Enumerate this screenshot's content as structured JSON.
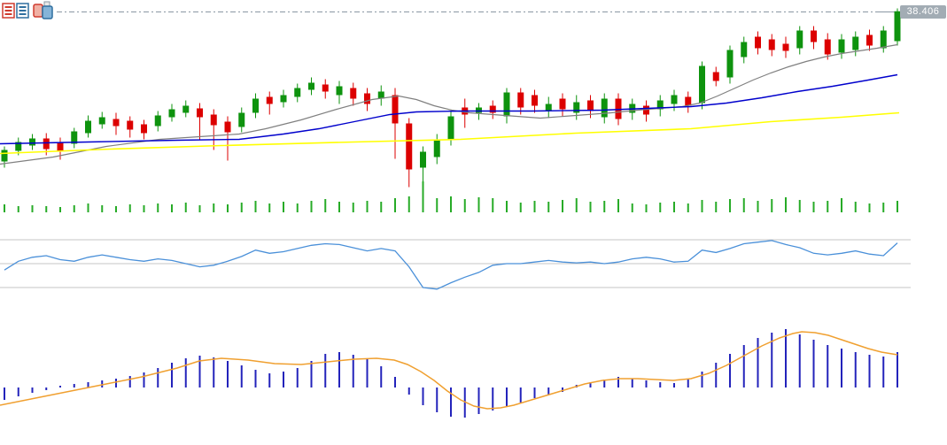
{
  "price_label": {
    "value": "38.406",
    "bg_color": "#a2acb4",
    "text_color": "#ffffff"
  },
  "toolbar": {
    "buttons": [
      {
        "name": "market-quotes-button",
        "icon": "quote-board-icon"
      },
      {
        "name": "chart-type-button",
        "icon": "candlestick-chart-icon"
      }
    ]
  },
  "colors": {
    "up": "#0e930e",
    "down": "#dc0000",
    "ma_fast": "#808080",
    "ma_mid": "#0000cc",
    "ma_slow": "#ffff00",
    "volume": "#27ab27",
    "oscillator": "#4a90d9",
    "grid": "#c4c4c4",
    "macd_bar": "#2323bb",
    "macd_signal": "#f0a030",
    "last_price_line": "#8a97a3"
  },
  "chart_data": [
    {
      "type": "candlestick",
      "name": "price-panel-with-moving-averages",
      "x_start": 5,
      "x_step": 15.75,
      "ylim": [
        34.3,
        38.5
      ],
      "last_price": 38.406,
      "candles": [
        [
          35.01,
          35.35,
          34.87,
          35.27
        ],
        [
          35.25,
          35.55,
          35.15,
          35.45
        ],
        [
          35.37,
          35.63,
          35.27,
          35.53
        ],
        [
          35.53,
          35.65,
          35.15,
          35.29
        ],
        [
          35.45,
          35.55,
          35.05,
          35.25
        ],
        [
          35.41,
          35.77,
          35.31,
          35.69
        ],
        [
          35.65,
          36.05,
          35.55,
          35.93
        ],
        [
          35.85,
          36.13,
          35.75,
          36.01
        ],
        [
          35.97,
          36.11,
          35.61,
          35.81
        ],
        [
          35.93,
          36.03,
          35.55,
          35.73
        ],
        [
          35.85,
          35.95,
          35.51,
          35.65
        ],
        [
          35.81,
          36.15,
          35.69,
          36.05
        ],
        [
          36.01,
          36.31,
          35.91,
          36.19
        ],
        [
          36.11,
          36.39,
          36.01,
          36.27
        ],
        [
          36.21,
          36.33,
          35.51,
          36.01
        ],
        [
          36.07,
          36.19,
          35.27,
          35.83
        ],
        [
          35.91,
          36.03,
          35.03,
          35.67
        ],
        [
          35.79,
          36.23,
          35.67,
          36.11
        ],
        [
          36.11,
          36.55,
          35.99,
          36.43
        ],
        [
          36.47,
          36.59,
          36.07,
          36.31
        ],
        [
          36.35,
          36.63,
          36.23,
          36.51
        ],
        [
          36.47,
          36.77,
          36.35,
          36.67
        ],
        [
          36.63,
          36.91,
          36.51,
          36.79
        ],
        [
          36.75,
          36.87,
          36.43,
          36.59
        ],
        [
          36.51,
          36.83,
          36.31,
          36.71
        ],
        [
          36.67,
          36.79,
          36.27,
          36.43
        ],
        [
          36.55,
          36.67,
          36.15,
          36.31
        ],
        [
          36.43,
          36.73,
          36.27,
          36.59
        ],
        [
          36.51,
          36.67,
          35.07,
          35.87
        ],
        [
          35.87,
          35.99,
          34.43,
          34.83
        ],
        [
          34.87,
          35.35,
          34.37,
          35.23
        ],
        [
          35.11,
          35.63,
          34.95,
          35.51
        ],
        [
          35.51,
          36.15,
          35.37,
          36.03
        ],
        [
          36.23,
          36.43,
          35.77,
          36.07
        ],
        [
          36.11,
          36.33,
          35.95,
          36.23
        ],
        [
          36.27,
          36.39,
          35.97,
          36.11
        ],
        [
          36.03,
          36.67,
          35.87,
          36.57
        ],
        [
          36.57,
          36.67,
          36.07,
          36.23
        ],
        [
          36.51,
          36.63,
          36.11,
          36.27
        ],
        [
          36.15,
          36.47,
          35.99,
          36.31
        ],
        [
          36.43,
          36.55,
          36.03,
          36.19
        ],
        [
          36.11,
          36.51,
          35.95,
          36.35
        ],
        [
          36.39,
          36.51,
          35.99,
          36.15
        ],
        [
          36.01,
          36.55,
          35.87,
          36.43
        ],
        [
          36.43,
          36.55,
          35.83,
          35.97
        ],
        [
          36.11,
          36.43,
          35.95,
          36.31
        ],
        [
          36.27,
          36.39,
          35.91,
          36.07
        ],
        [
          36.19,
          36.51,
          36.03,
          36.39
        ],
        [
          36.31,
          36.63,
          36.15,
          36.51
        ],
        [
          36.47,
          36.59,
          36.11,
          36.27
        ],
        [
          36.33,
          37.27,
          36.19,
          37.17
        ],
        [
          37.03,
          37.15,
          36.71,
          36.83
        ],
        [
          36.91,
          37.63,
          36.77,
          37.53
        ],
        [
          37.37,
          37.83,
          37.23,
          37.71
        ],
        [
          37.83,
          37.95,
          37.43,
          37.57
        ],
        [
          37.77,
          37.89,
          37.39,
          37.53
        ],
        [
          37.67,
          37.83,
          37.35,
          37.51
        ],
        [
          37.57,
          38.07,
          37.43,
          37.97
        ],
        [
          37.97,
          38.07,
          37.55,
          37.71
        ],
        [
          37.77,
          37.91,
          37.31,
          37.43
        ],
        [
          37.47,
          37.89,
          37.33,
          37.77
        ],
        [
          37.53,
          37.95,
          37.39,
          37.83
        ],
        [
          37.87,
          37.99,
          37.51,
          37.63
        ],
        [
          37.57,
          38.07,
          37.47,
          37.97
        ],
        [
          37.73,
          38.47,
          37.63,
          38.406
        ]
      ],
      "overlays": [
        {
          "name": "ma-fast-gray",
          "color_key": "ma_fast",
          "width": 1.2,
          "points": [
            [
              0,
              34.95
            ],
            [
              60,
              35.11
            ],
            [
              120,
              35.35
            ],
            [
              180,
              35.51
            ],
            [
              240,
              35.59
            ],
            [
              270,
              35.63
            ],
            [
              300,
              35.75
            ],
            [
              340,
              35.95
            ],
            [
              380,
              36.19
            ],
            [
              420,
              36.41
            ],
            [
              450,
              36.49
            ],
            [
              470,
              36.41
            ],
            [
              490,
              36.27
            ],
            [
              510,
              36.17
            ],
            [
              530,
              36.11
            ],
            [
              570,
              36.05
            ],
            [
              610,
              35.99
            ],
            [
              650,
              36.05
            ],
            [
              690,
              36.11
            ],
            [
              720,
              36.17
            ],
            [
              745,
              36.21
            ],
            [
              770,
              36.25
            ],
            [
              790,
              36.33
            ],
            [
              810,
              36.49
            ],
            [
              830,
              36.67
            ],
            [
              850,
              36.85
            ],
            [
              870,
              37.01
            ],
            [
              890,
              37.15
            ],
            [
              910,
              37.27
            ],
            [
              930,
              37.37
            ],
            [
              950,
              37.45
            ],
            [
              970,
              37.51
            ],
            [
              990,
              37.57
            ],
            [
              1013,
              37.65
            ]
          ]
        },
        {
          "name": "ma-mid-blue",
          "color_key": "ma_mid",
          "width": 1.4,
          "points": [
            [
              0,
              35.41
            ],
            [
              100,
              35.45
            ],
            [
              200,
              35.49
            ],
            [
              270,
              35.51
            ],
            [
              320,
              35.63
            ],
            [
              360,
              35.75
            ],
            [
              400,
              35.91
            ],
            [
              440,
              36.07
            ],
            [
              470,
              36.13
            ],
            [
              520,
              36.15
            ],
            [
              600,
              36.15
            ],
            [
              680,
              36.17
            ],
            [
              730,
              36.21
            ],
            [
              780,
              36.25
            ],
            [
              820,
              36.33
            ],
            [
              860,
              36.45
            ],
            [
              900,
              36.59
            ],
            [
              940,
              36.71
            ],
            [
              980,
              36.85
            ],
            [
              1013,
              36.97
            ]
          ]
        },
        {
          "name": "ma-slow-yellow",
          "color_key": "ma_slow",
          "width": 1.6,
          "points": [
            [
              0,
              35.19
            ],
            [
              125,
              35.29
            ],
            [
              250,
              35.37
            ],
            [
              400,
              35.45
            ],
            [
              520,
              35.51
            ],
            [
              650,
              35.65
            ],
            [
              780,
              35.75
            ],
            [
              870,
              35.91
            ],
            [
              950,
              36.01
            ],
            [
              1015,
              36.11
            ]
          ]
        }
      ]
    },
    {
      "type": "bar",
      "name": "volume-panel",
      "ylim": [
        0,
        35
      ],
      "values": [
        9,
        7,
        8,
        7,
        6,
        8,
        10,
        8,
        7,
        9,
        8,
        10,
        9,
        11,
        8,
        10,
        9,
        11,
        13,
        10,
        12,
        10,
        13,
        15,
        12,
        11,
        13,
        12,
        16,
        18,
        35,
        16,
        18,
        15,
        17,
        16,
        13,
        11,
        13,
        12,
        14,
        16,
        12,
        13,
        15,
        10,
        9,
        11,
        12,
        10,
        14,
        12,
        15,
        16,
        13,
        15,
        17,
        14,
        12,
        13,
        16,
        12,
        10,
        11,
        13
      ]
    },
    {
      "type": "line",
      "name": "oscillator-panel",
      "ylim": [
        20,
        80
      ],
      "gridlines": [
        80,
        50,
        20
      ],
      "values": [
        42,
        53,
        58,
        60,
        55,
        53,
        58,
        61,
        58,
        55,
        53,
        56,
        54,
        50,
        46,
        48,
        53,
        59,
        67,
        63,
        65,
        69,
        73,
        75,
        74,
        70,
        66,
        69,
        66,
        46,
        20,
        18,
        26,
        33,
        39,
        48,
        50,
        50,
        52,
        54,
        52,
        51,
        52,
        50,
        52,
        56,
        58,
        56,
        52,
        53,
        67,
        64,
        69,
        75,
        77,
        79,
        74,
        70,
        63,
        61,
        63,
        66,
        62,
        60,
        76
      ]
    },
    {
      "type": "macd",
      "name": "macd-panel",
      "ylim": [
        -0.34,
        0.66
      ],
      "histogram": [
        -0.14,
        -0.1,
        -0.06,
        -0.03,
        0.02,
        0.04,
        0.06,
        0.08,
        0.1,
        0.13,
        0.17,
        0.22,
        0.28,
        0.33,
        0.36,
        0.34,
        0.3,
        0.25,
        0.2,
        0.16,
        0.18,
        0.22,
        0.3,
        0.38,
        0.4,
        0.37,
        0.32,
        0.24,
        0.12,
        -0.08,
        -0.2,
        -0.28,
        -0.33,
        -0.34,
        -0.3,
        -0.26,
        -0.22,
        -0.17,
        -0.12,
        -0.08,
        -0.05,
        0.03,
        0.06,
        0.09,
        0.12,
        0.1,
        0.08,
        0.06,
        0.05,
        0.1,
        0.18,
        0.28,
        0.38,
        0.48,
        0.56,
        0.62,
        0.66,
        0.6,
        0.54,
        0.48,
        0.44,
        0.4,
        0.37,
        0.35,
        0.4
      ],
      "signal_points": [
        [
          0,
          -0.2
        ],
        [
          40,
          -0.12
        ],
        [
          80,
          -0.04
        ],
        [
          120,
          0.04
        ],
        [
          160,
          0.12
        ],
        [
          200,
          0.22
        ],
        [
          225,
          0.3
        ],
        [
          250,
          0.33
        ],
        [
          280,
          0.31
        ],
        [
          310,
          0.27
        ],
        [
          340,
          0.26
        ],
        [
          370,
          0.29
        ],
        [
          400,
          0.32
        ],
        [
          425,
          0.33
        ],
        [
          445,
          0.31
        ],
        [
          460,
          0.26
        ],
        [
          475,
          0.18
        ],
        [
          490,
          0.08
        ],
        [
          505,
          -0.04
        ],
        [
          520,
          -0.14
        ],
        [
          535,
          -0.21
        ],
        [
          550,
          -0.24
        ],
        [
          565,
          -0.23
        ],
        [
          580,
          -0.2
        ],
        [
          600,
          -0.14
        ],
        [
          620,
          -0.08
        ],
        [
          640,
          -0.02
        ],
        [
          660,
          0.04
        ],
        [
          680,
          0.08
        ],
        [
          700,
          0.1
        ],
        [
          720,
          0.1
        ],
        [
          740,
          0.09
        ],
        [
          760,
          0.08
        ],
        [
          780,
          0.1
        ],
        [
          800,
          0.16
        ],
        [
          820,
          0.25
        ],
        [
          840,
          0.36
        ],
        [
          860,
          0.47
        ],
        [
          880,
          0.56
        ],
        [
          895,
          0.61
        ],
        [
          905,
          0.63
        ],
        [
          920,
          0.62
        ],
        [
          935,
          0.59
        ],
        [
          950,
          0.54
        ],
        [
          965,
          0.49
        ],
        [
          980,
          0.44
        ],
        [
          995,
          0.4
        ],
        [
          1013,
          0.37
        ]
      ]
    }
  ]
}
